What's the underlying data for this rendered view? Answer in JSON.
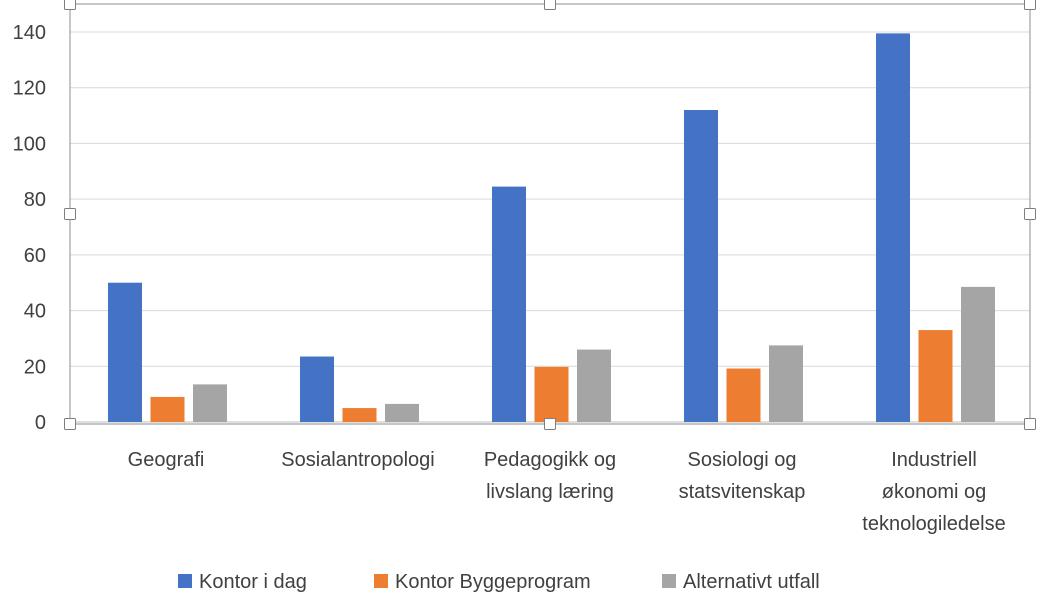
{
  "chart_data": {
    "type": "bar",
    "categories": [
      [
        "Geografi"
      ],
      [
        "Sosialantropologi"
      ],
      [
        "Pedagogikk og",
        "livslang læring"
      ],
      [
        "Sosiologi og",
        "statsvitenskap"
      ],
      [
        "Industriell",
        "økonomi og",
        "teknologiledelse"
      ]
    ],
    "series": [
      {
        "name": "Kontor i dag",
        "color": "#4472C4",
        "values": [
          50,
          23.5,
          84.5,
          112,
          139.5
        ]
      },
      {
        "name": "Kontor Byggeprogram",
        "color": "#ED7D31",
        "values": [
          9,
          5,
          19.8,
          19.2,
          33
        ]
      },
      {
        "name": "Alternativt utfall",
        "color": "#A5A5A5",
        "values": [
          13.5,
          6.5,
          26,
          27.5,
          48.5
        ]
      }
    ],
    "yticks": [
      0,
      20,
      40,
      60,
      80,
      100,
      120,
      140
    ],
    "ylim": [
      0,
      150
    ],
    "grid": true,
    "legend_position": "bottom"
  }
}
